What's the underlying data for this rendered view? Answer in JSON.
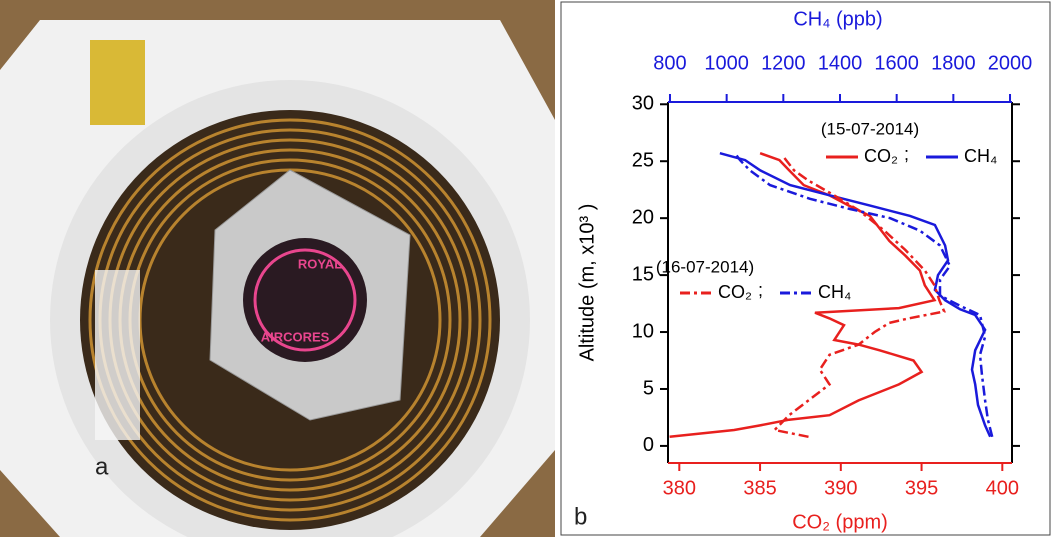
{
  "photo": {
    "panel_label": "a",
    "logo_text": [
      "ROYAL",
      "AIRCORES"
    ]
  },
  "chart_data": {
    "type": "line",
    "orientation": "vertical-profile",
    "panel_label": "b",
    "xlabel": "CO₂ (ppm)",
    "x2label": "CH₄ (ppb)",
    "ylabel": "Altitude (m, x10³ )",
    "xlim": [
      379.3,
      400.6
    ],
    "xticks": [
      380,
      385,
      390,
      395,
      400
    ],
    "x2lim": [
      793,
      2007
    ],
    "x2ticks": [
      800,
      1000,
      1200,
      1400,
      1600,
      1800,
      2000
    ],
    "ylim": [
      -1.5,
      30.2
    ],
    "yticks": [
      0,
      5,
      10,
      15,
      20,
      25,
      30
    ],
    "xcolor": "#e8201e",
    "x2color": "#1a1adb",
    "legend_titles": [
      "(15-07-2014)",
      "(16-07-2014)"
    ],
    "legend_separator": ";",
    "series": [
      {
        "name": "CO₂",
        "color": "#e8201e",
        "axis": "x",
        "dash": false,
        "altitude": [
          0.8,
          1.4,
          1.8,
          2.3,
          2.7,
          4.0,
          5.4,
          6.5,
          7.5,
          8.4,
          8.9,
          9.3,
          10.6,
          11.2,
          11.7,
          12.1,
          12.8,
          14.1,
          15.4,
          16.7,
          18.0,
          20.2,
          21.1,
          22.0,
          22.9,
          24.2,
          25.1,
          25.7
        ],
        "values": [
          379.4,
          383.4,
          385.0,
          386.8,
          389.3,
          391.1,
          393.6,
          395.0,
          394.5,
          392.4,
          391.1,
          389.6,
          390.2,
          389.3,
          388.4,
          393.6,
          395.8,
          395.2,
          394.9,
          394.0,
          393.0,
          391.8,
          390.5,
          389.3,
          387.7,
          386.8,
          386.2,
          385.0
        ]
      },
      {
        "name": "CH₄",
        "color": "#1a1adb",
        "axis": "x2",
        "dash": false,
        "altitude": [
          0.8,
          1.8,
          3.6,
          5.4,
          6.7,
          8.4,
          10.2,
          11.5,
          12.0,
          12.8,
          13.7,
          15.0,
          16.3,
          17.6,
          19.4,
          20.2,
          21.1,
          22.0,
          22.9,
          24.2,
          25.1,
          25.7
        ],
        "values": [
          1930,
          1912,
          1887,
          1877,
          1866,
          1877,
          1912,
          1877,
          1824,
          1771,
          1735,
          1746,
          1781,
          1771,
          1735,
          1647,
          1506,
          1365,
          1224,
          1118,
          1065,
          976
        ]
      },
      {
        "name": "CO₂",
        "color": "#e8201e",
        "axis": "x",
        "dash": true,
        "altitude": [
          0.8,
          1.4,
          2.7,
          4.0,
          5.4,
          6.7,
          8.0,
          8.9,
          10.0,
          10.8,
          11.2,
          11.8,
          12.8,
          14.1,
          15.4,
          17.2,
          18.9,
          20.7,
          22.0,
          23.3,
          24.2,
          25.3
        ],
        "values": [
          388.0,
          385.9,
          386.8,
          388.0,
          389.3,
          388.7,
          389.3,
          391.1,
          392.1,
          393.0,
          394.2,
          396.4,
          396.1,
          395.8,
          395.2,
          394.0,
          392.7,
          391.1,
          389.6,
          388.0,
          387.1,
          386.5
        ]
      },
      {
        "name": "CH₄",
        "color": "#1a1adb",
        "axis": "x2",
        "dash": true,
        "altitude": [
          0.8,
          2.3,
          4.0,
          6.2,
          8.0,
          9.6,
          11.5,
          12.3,
          13.2,
          14.6,
          15.8,
          17.6,
          18.9,
          20.0,
          20.8,
          21.7,
          22.9,
          24.2,
          25.1,
          25.7
        ],
        "values": [
          1937,
          1922,
          1912,
          1901,
          1894,
          1912,
          1894,
          1824,
          1753,
          1753,
          1788,
          1753,
          1682,
          1577,
          1435,
          1294,
          1153,
          1082,
          1047,
          1029
        ]
      }
    ]
  }
}
